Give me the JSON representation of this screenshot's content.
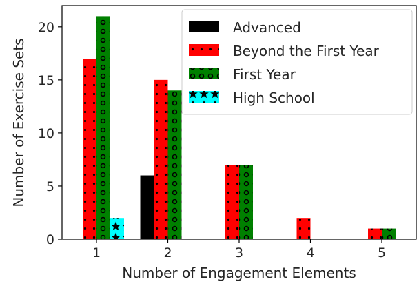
{
  "chart_data": {
    "type": "bar",
    "xlabel": "Number of Engagement Elements",
    "ylabel": "Number of Exercise Sets",
    "categories": [
      "1",
      "2",
      "3",
      "4",
      "5"
    ],
    "x": [
      1,
      2,
      3,
      4,
      5
    ],
    "yticks": [
      0,
      5,
      10,
      15,
      20
    ],
    "ylim": [
      0,
      22
    ],
    "grid": false,
    "legend_position": "top-right",
    "series": [
      {
        "name": "Advanced",
        "color": "#000000",
        "hatch": "none",
        "values": [
          0,
          6,
          0,
          0,
          0
        ]
      },
      {
        "name": "Beyond the First Year",
        "color": "#ff0000",
        "hatch": "dots",
        "values": [
          17,
          15,
          7,
          2,
          1
        ]
      },
      {
        "name": "First Year",
        "color": "#008000",
        "hatch": "circles",
        "values": [
          21,
          14,
          7,
          0,
          1
        ]
      },
      {
        "name": "High School",
        "color": "#00ffff",
        "hatch": "stars",
        "values": [
          2,
          0,
          0,
          0,
          0
        ]
      }
    ]
  }
}
